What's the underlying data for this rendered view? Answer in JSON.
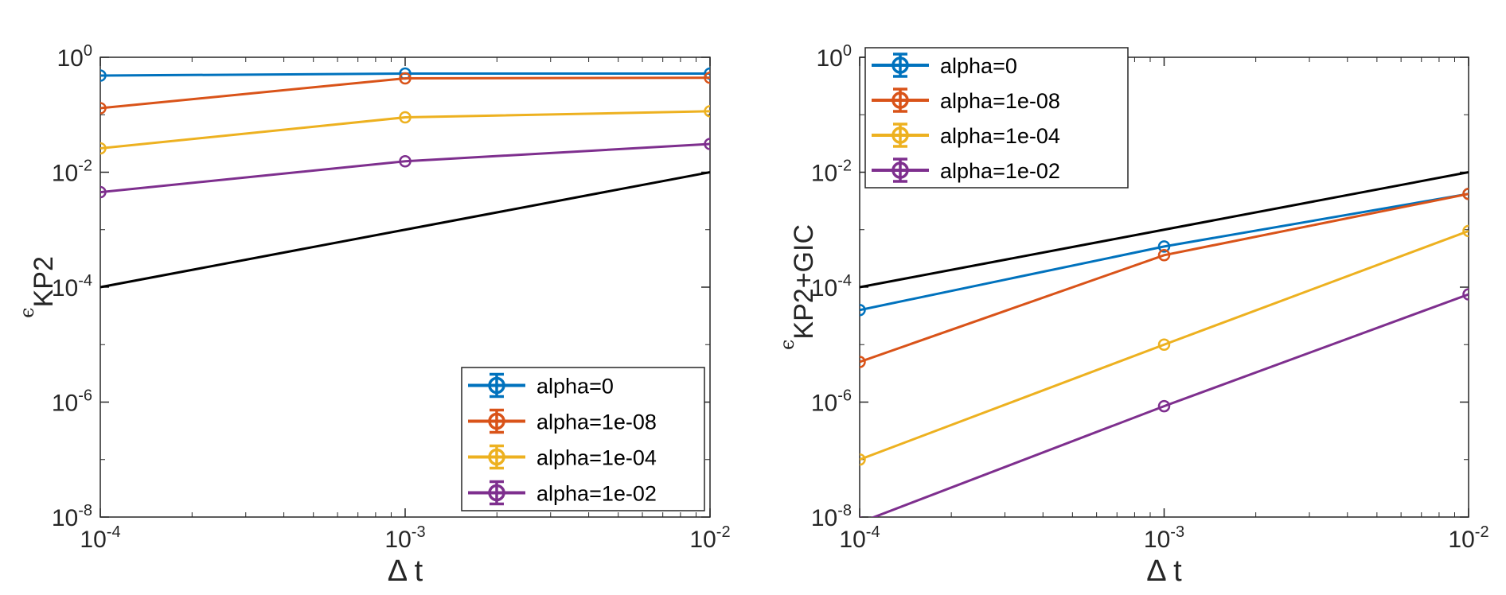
{
  "chart_data": [
    {
      "type": "line",
      "xscale": "log",
      "yscale": "log",
      "xlim": [
        0.0001,
        0.01
      ],
      "ylim": [
        1e-08,
        1
      ],
      "xticks": [
        {
          "value": 0.0001,
          "base": "10",
          "exp": "-4"
        },
        {
          "value": 0.001,
          "base": "10",
          "exp": "-3"
        },
        {
          "value": 0.01,
          "base": "10",
          "exp": "-2"
        }
      ],
      "yticks": [
        {
          "value": 1e-08,
          "base": "10",
          "exp": "-8"
        },
        {
          "value": 1e-06,
          "base": "10",
          "exp": "-6"
        },
        {
          "value": 0.0001,
          "base": "10",
          "exp": "-4"
        },
        {
          "value": 0.01,
          "base": "10",
          "exp": "-2"
        },
        {
          "value": 1,
          "base": "10",
          "exp": "0"
        }
      ],
      "xlabel": "Δ t",
      "ylabel": {
        "symbol": "ϵ",
        "sub": "KP2"
      },
      "grid": false,
      "legend_position": "bottom-right",
      "x": [
        0.0001,
        0.001,
        0.01
      ],
      "series": [
        {
          "name": "alpha=0",
          "color": "#0072BD",
          "values": [
            0.48,
            0.52,
            0.52
          ]
        },
        {
          "name": "alpha=1e-08",
          "color": "#D95319",
          "values": [
            0.13,
            0.43,
            0.44
          ]
        },
        {
          "name": "alpha=1e-04",
          "color": "#EDB120",
          "values": [
            0.026,
            0.09,
            0.115
          ]
        },
        {
          "name": "alpha=1e-02",
          "color": "#7E2F8E",
          "values": [
            0.0045,
            0.0155,
            0.031
          ]
        }
      ],
      "reference_line": {
        "color": "#000000",
        "values": [
          0.0001,
          0.001,
          0.01
        ]
      }
    },
    {
      "type": "line",
      "xscale": "log",
      "yscale": "log",
      "xlim": [
        0.0001,
        0.01
      ],
      "ylim": [
        1e-08,
        1
      ],
      "xticks": [
        {
          "value": 0.0001,
          "base": "10",
          "exp": "-4"
        },
        {
          "value": 0.001,
          "base": "10",
          "exp": "-3"
        },
        {
          "value": 0.01,
          "base": "10",
          "exp": "-2"
        }
      ],
      "yticks": [
        {
          "value": 1e-08,
          "base": "10",
          "exp": "-8"
        },
        {
          "value": 1e-06,
          "base": "10",
          "exp": "-6"
        },
        {
          "value": 0.0001,
          "base": "10",
          "exp": "-4"
        },
        {
          "value": 0.01,
          "base": "10",
          "exp": "-2"
        },
        {
          "value": 1,
          "base": "10",
          "exp": "0"
        }
      ],
      "xlabel": "Δ t",
      "ylabel": {
        "symbol": "ϵ",
        "sub": "KP2+GIC"
      },
      "grid": false,
      "legend_position": "top-left",
      "x": [
        0.0001,
        0.001,
        0.01
      ],
      "series": [
        {
          "name": "alpha=0",
          "color": "#0072BD",
          "values": [
            4e-05,
            0.00051,
            0.0042
          ]
        },
        {
          "name": "alpha=1e-08",
          "color": "#D95319",
          "values": [
            5e-06,
            0.00036,
            0.0042
          ]
        },
        {
          "name": "alpha=1e-04",
          "color": "#EDB120",
          "values": [
            1e-07,
            1e-05,
            0.00095
          ]
        },
        {
          "name": "alpha=1e-02",
          "color": "#7E2F8E",
          "values": [
            8e-09,
            8.5e-07,
            7.5e-05
          ]
        }
      ],
      "reference_line": {
        "color": "#000000",
        "values": [
          0.0001,
          0.001,
          0.01
        ]
      }
    }
  ]
}
